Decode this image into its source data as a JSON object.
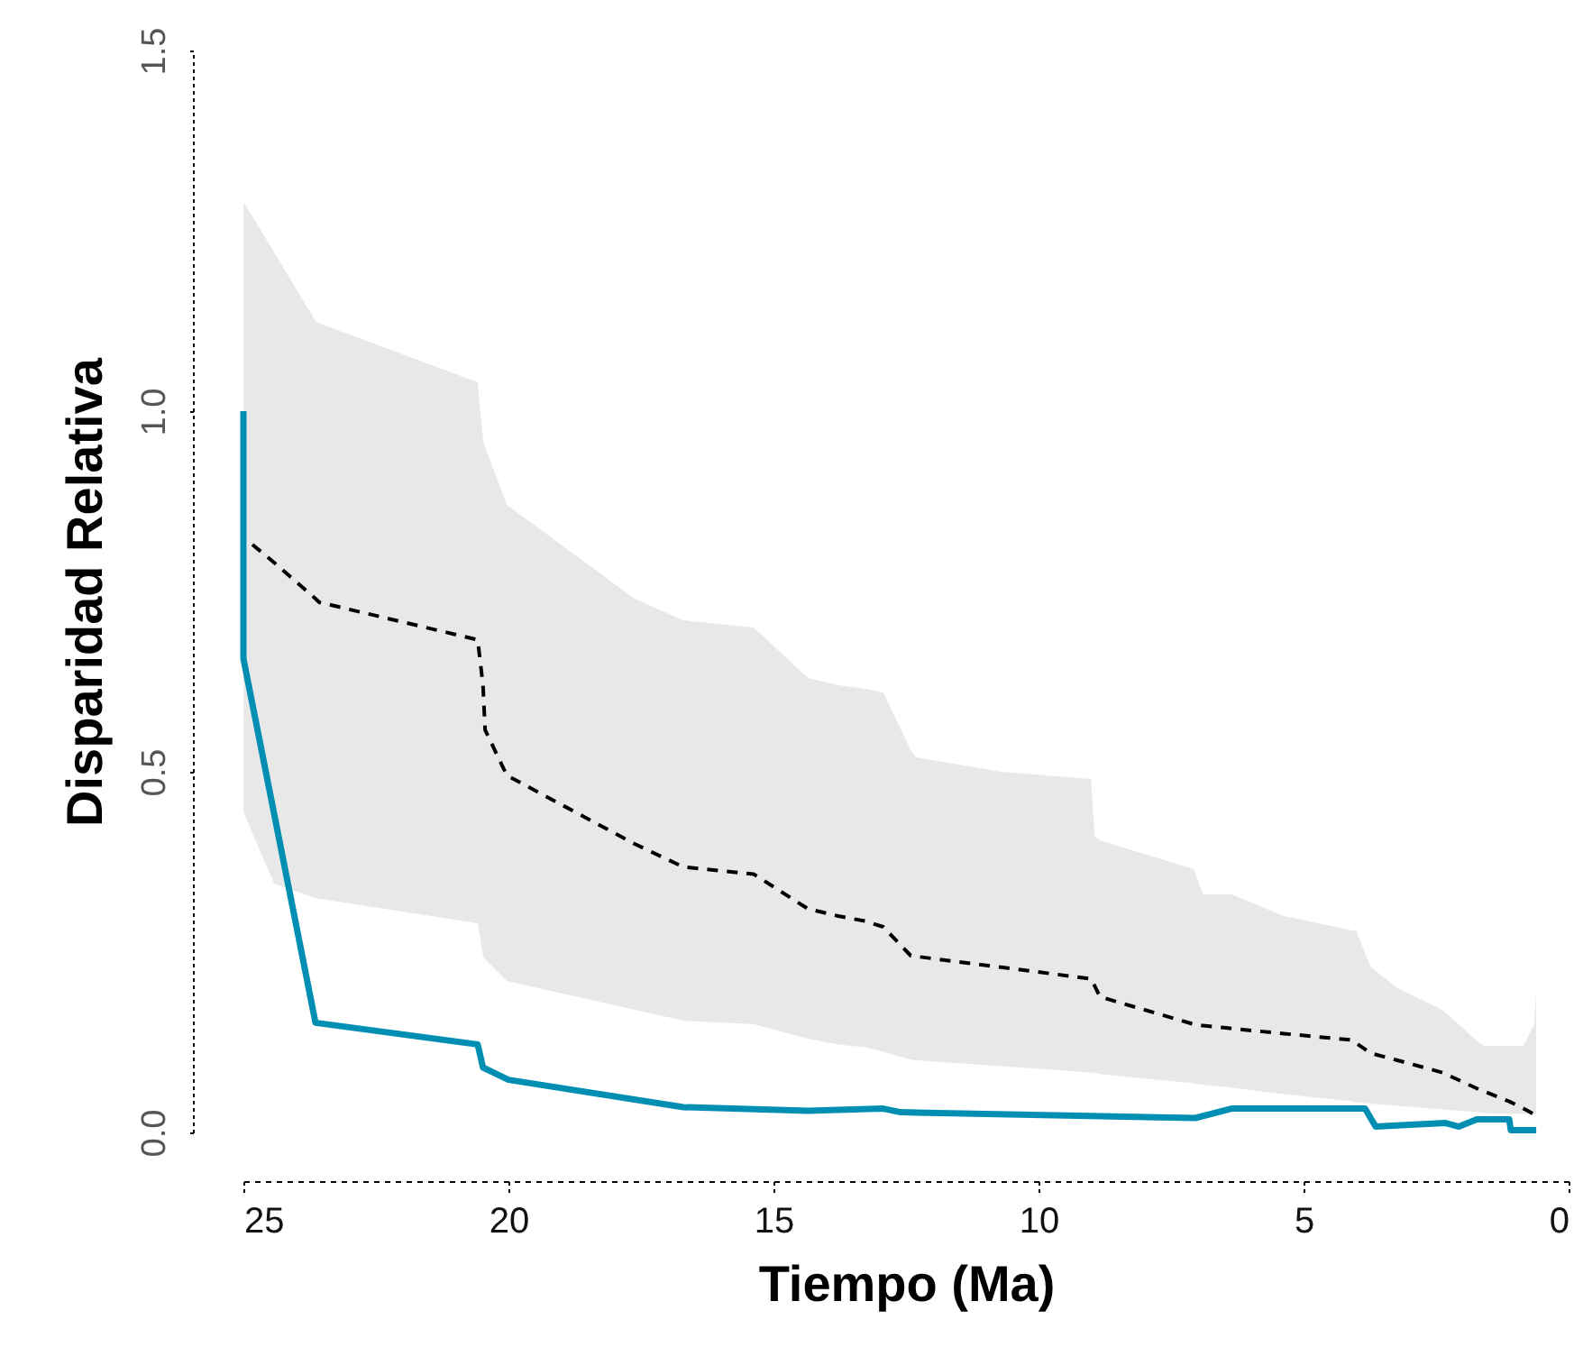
{
  "chart_data": {
    "type": "line",
    "xlabel": "Tiempo (Ma)",
    "ylabel": "Disparidad Relativa",
    "xlim": [
      25,
      0
    ],
    "xticks": [
      25,
      20,
      15,
      10,
      5,
      0
    ],
    "ylim": [
      0,
      1.5
    ],
    "yticks": [
      {
        "value": 0,
        "label": "0.0"
      },
      {
        "value": 0.5,
        "label": "0.5"
      },
      {
        "value": 1,
        "label": "1.0"
      },
      {
        "value": 1.5,
        "label": "1.5"
      }
    ],
    "grid": false,
    "series": [
      {
        "color": "#000000",
        "line_style": "dashed",
        "x": [
          25,
          24.83,
          24.42,
          23.64,
          23.57,
          20.58,
          20.48,
          20.44,
          20.03,
          17.62,
          16.7,
          15.37,
          14.35,
          13.78,
          13.27,
          12.93,
          12.41,
          12.31,
          10.71,
          9.01,
          8.94,
          8.84,
          7.07,
          6.9,
          6.46,
          6.36,
          5.37,
          4.08,
          4.01,
          3.74,
          3.23,
          2.38,
          1.7,
          1.6,
          1.12,
          0.85,
          0.65,
          0.61
        ],
        "values": [
          null,
          0.815,
          0.79,
          0.74,
          0.735,
          0.683,
          0.62,
          0.558,
          0.495,
          0.4,
          0.368,
          0.358,
          0.31,
          0.3,
          0.293,
          0.285,
          0.245,
          0.244,
          0.229,
          0.213,
          0.203,
          0.188,
          0.15,
          0.148,
          0.145,
          0.144,
          0.137,
          0.128,
          0.124,
          0.11,
          0.1,
          0.083,
          0.06,
          0.057,
          0.043,
          0.033,
          0.025,
          null
        ],
        "upper": [
          1.29,
          1.27,
          1.22,
          1.125,
          1.122,
          1.04,
          0.96,
          0.95,
          0.87,
          0.74,
          0.71,
          0.7,
          0.63,
          0.62,
          0.615,
          0.61,
          0.53,
          0.52,
          0.5,
          0.49,
          0.41,
          0.405,
          0.365,
          0.33,
          0.33,
          0.33,
          0.3,
          0.28,
          0.28,
          0.23,
          0.2,
          0.17,
          0.125,
          0.12,
          0.12,
          0.12,
          0.15,
          0.2
        ],
        "lower": [
          0.445,
          0.415,
          0.345,
          0.325,
          0.324,
          0.29,
          0.245,
          0.24,
          0.21,
          0.17,
          0.155,
          0.15,
          0.13,
          0.122,
          0.118,
          0.112,
          0.101,
          0.1,
          0.092,
          0.083,
          0.083,
          0.081,
          0.068,
          0.066,
          0.063,
          0.062,
          0.053,
          0.043,
          0.042,
          0.04,
          0.037,
          0.032,
          0.028,
          0.027,
          0.026,
          0.026,
          0.025,
          0.025
        ]
      },
      {
        "color": "#008fb3",
        "line_style": "solid",
        "x": [
          25,
          25,
          23.64,
          20.58,
          20.48,
          20.0,
          16.7,
          14.35,
          12.93,
          12.6,
          7.04,
          6.36,
          3.84,
          3.64,
          2.32,
          2.07,
          1.73,
          1.12,
          1.09,
          0.61
        ],
        "values": [
          1.0,
          0.657,
          0.152,
          0.122,
          0.09,
          0.073,
          0.035,
          0.03,
          0.033,
          0.028,
          0.02,
          0.033,
          0.033,
          0.008,
          0.013,
          0.008,
          0.018,
          0.018,
          0.003,
          0.003
        ]
      }
    ]
  }
}
